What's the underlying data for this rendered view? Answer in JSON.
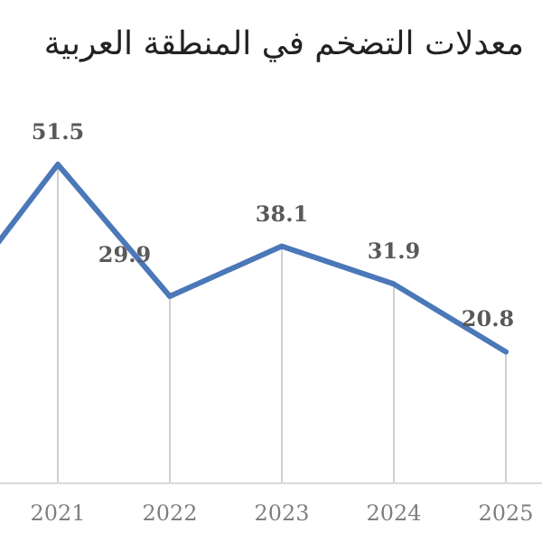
{
  "chart_data": {
    "type": "line",
    "title": "معدلات التضخم في المنطقة العربية",
    "categories": [
      null,
      "2021",
      "2022",
      "2023",
      "2024",
      "2025",
      null
    ],
    "series": [
      {
        "color": "#4a78b8",
        "values": [
          27.5,
          51.5,
          29.9,
          38.1,
          31.9,
          20.8,
          null
        ],
        "value_labels": [
          null,
          "51.5",
          "29.9",
          "38.1",
          "31.9",
          "20.8",
          null
        ]
      }
    ],
    "grid": "x",
    "marker": "none",
    "line_style": "solid",
    "legend": false
  }
}
